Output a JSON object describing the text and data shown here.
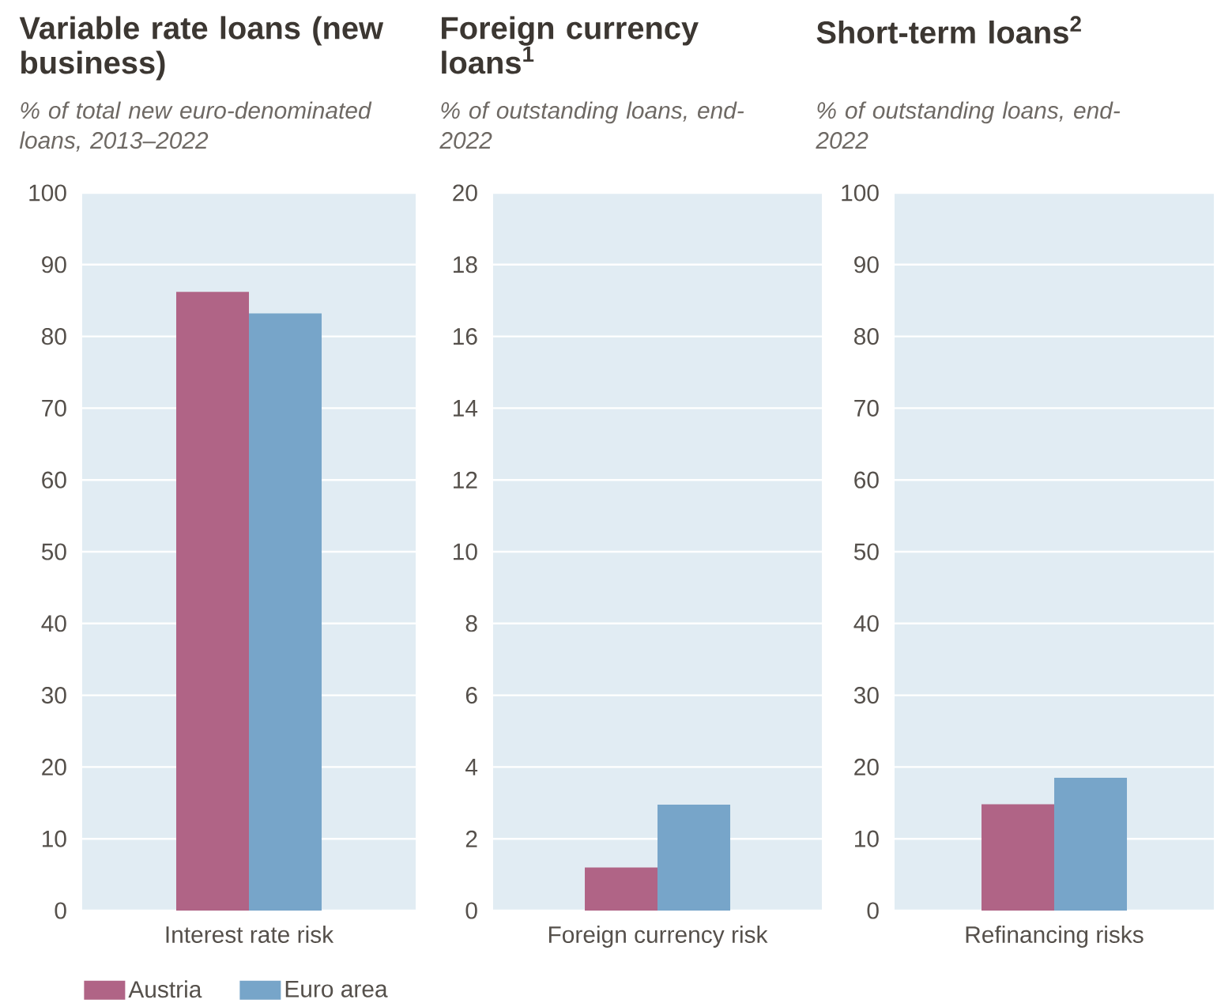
{
  "chart_data": [
    {
      "type": "bar",
      "title": "Variable rate loans (new business)",
      "subtitle": "% of total new euro-denominated loans, 2013–2022",
      "categories": [
        "Interest rate risk"
      ],
      "series": [
        {
          "name": "Austria",
          "color": "#b06486",
          "values": [
            86.2
          ]
        },
        {
          "name": "Euro area",
          "color": "#77a5c9",
          "values": [
            83.2
          ]
        }
      ],
      "ylim": [
        0,
        100
      ],
      "yticks": [
        0,
        10,
        20,
        30,
        40,
        50,
        60,
        70,
        80,
        90,
        100
      ],
      "grid": "y",
      "legend": "bottom left"
    },
    {
      "type": "bar",
      "title": "Foreign currency loans$^{1}$",
      "subtitle": "% of outstanding loans, end-2022",
      "categories": [
        "Foreign currency risk"
      ],
      "series": [
        {
          "color": "#b06486",
          "values": [
            1.2
          ]
        },
        {
          "color": "#77a5c9",
          "values": [
            2.95
          ]
        }
      ],
      "ylim": [
        0,
        20
      ],
      "yticks": [
        0,
        2,
        4,
        6,
        8,
        10,
        12,
        14,
        16,
        18,
        20
      ],
      "grid": "y"
    },
    {
      "type": "bar",
      "title": "Short-term loans$^{2}$",
      "subtitle": "% of outstanding loans, end-2022",
      "categories": [
        "Refinancing risks"
      ],
      "series": [
        {
          "color": "#b06486",
          "values": [
            14.8
          ]
        },
        {
          "color": "#77a5c9",
          "values": [
            18.5
          ]
        }
      ],
      "ylim": [
        0,
        100
      ],
      "yticks": [
        0,
        10,
        20,
        30,
        40,
        50,
        60,
        70,
        80,
        90,
        100
      ],
      "grid": "y"
    }
  ]
}
